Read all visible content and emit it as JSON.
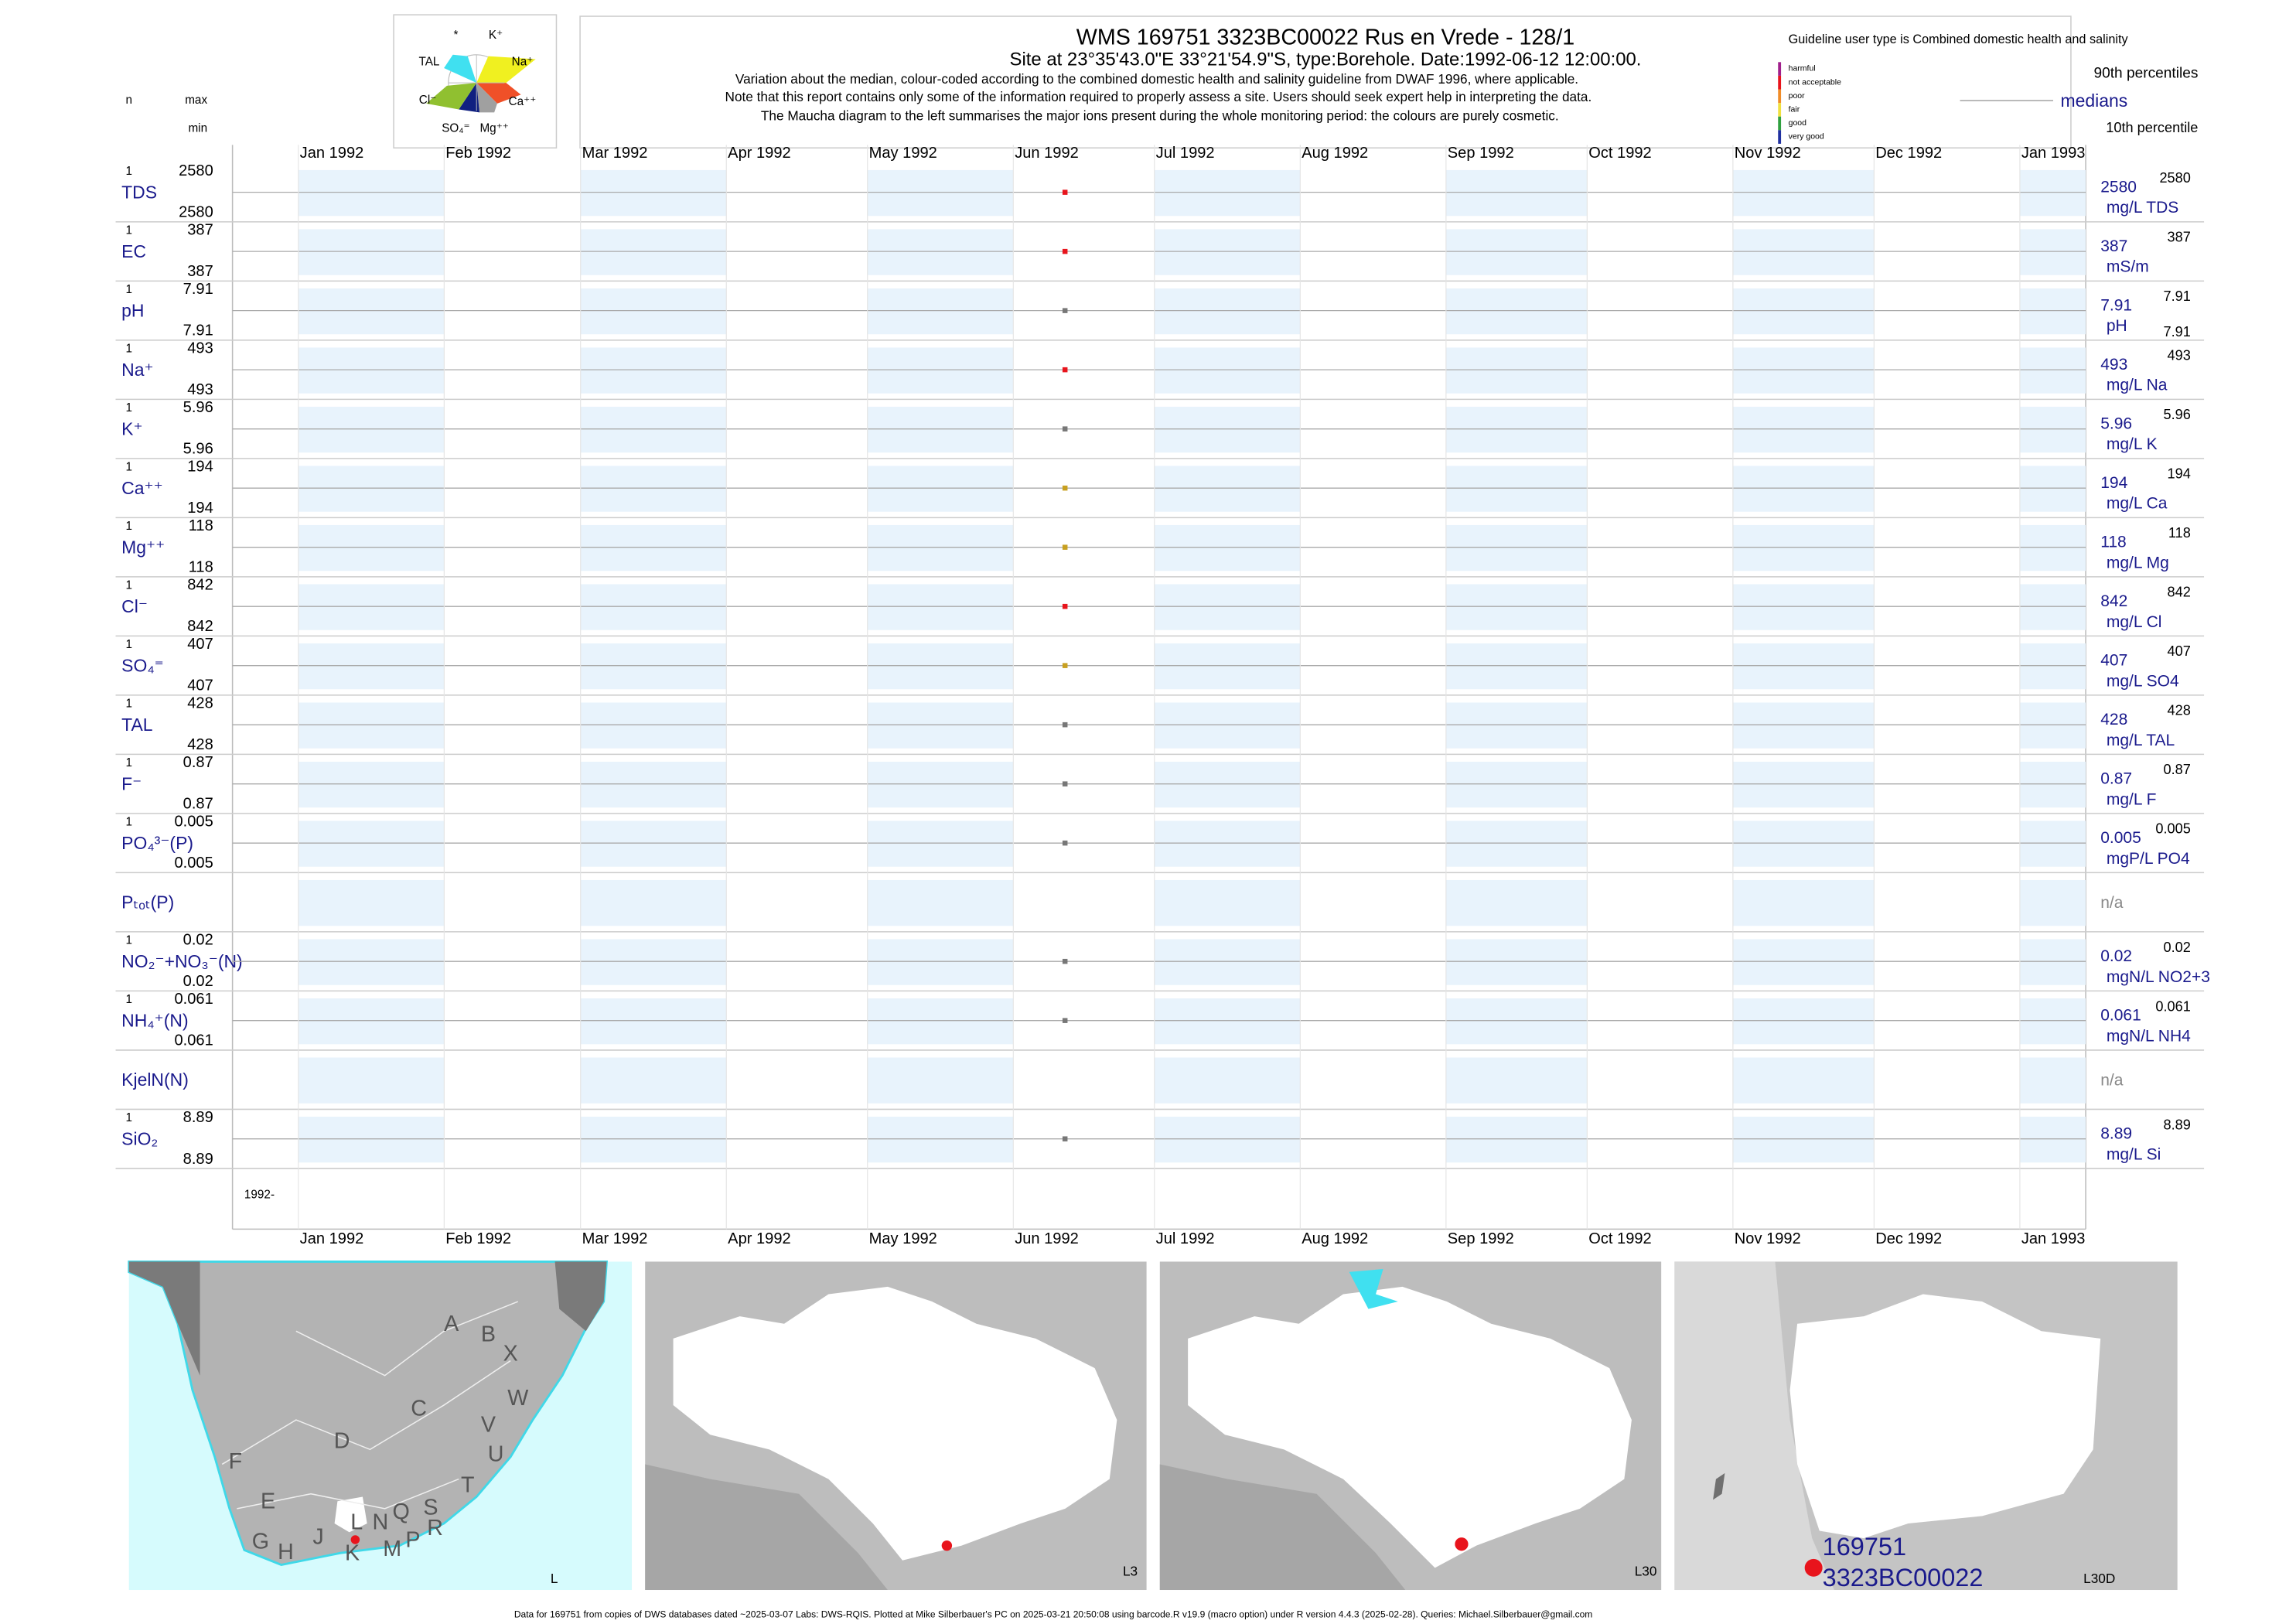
{
  "header": {
    "title": "WMS 169751 3323BC00022 Rus en Vrede - 128/1",
    "subtitle": "Site at 23°35'43.0\"E 33°21'54.9\"S, type:Borehole. Date:1992-06-12 12:00:00.",
    "notes": [
      "Variation about the median,  colour-coded according to the combined domestic health and salinity guideline from DWAF 1996, where applicable.",
      "Note that this report contains only some of the information required to properly assess a site. Users should seek expert help in interpreting the data.",
      "The Maucha diagram to the left summarises the major ions present during the whole monitoring period: the colours are purely cosmetic."
    ],
    "maucha_labels": [
      "*",
      "K⁺",
      "TAL",
      "Na⁺",
      "Cl⁻",
      "Ca⁺⁺",
      "SO₄⁼",
      "Mg⁺⁺"
    ],
    "columns": [
      "n",
      "max",
      "min"
    ]
  },
  "legend": {
    "guideline_note": "Guideline user type is Combined domestic health and salinity",
    "classes": [
      "harmful",
      "not acceptable",
      "poor",
      "fair",
      "good",
      "very good"
    ],
    "class_colors": [
      "#a0208c",
      "#e8141c",
      "#f08c28",
      "#f0e040",
      "#30a040",
      "#2030a0"
    ],
    "p90_label": "90th percentiles",
    "median_label": "medians",
    "p10_label": "10th percentile"
  },
  "axis": {
    "xlim": [
      "1991-12-18",
      "1993-01-15"
    ],
    "xticks": [
      {
        "value": "1992-01-01",
        "label": "Jan 1992"
      },
      {
        "value": "1992-02-01",
        "label": "Feb 1992"
      },
      {
        "value": "1992-03-01",
        "label": "Mar 1992"
      },
      {
        "value": "1992-04-01",
        "label": "Apr 1992"
      },
      {
        "value": "1992-05-01",
        "label": "May 1992"
      },
      {
        "value": "1992-06-01",
        "label": "Jun 1992"
      },
      {
        "value": "1992-07-01",
        "label": "Jul 1992"
      },
      {
        "value": "1992-08-01",
        "label": "Aug 1992"
      },
      {
        "value": "1992-09-01",
        "label": "Sep 1992"
      },
      {
        "value": "1992-10-01",
        "label": "Oct 1992"
      },
      {
        "value": "1992-11-01",
        "label": "Nov 1992"
      },
      {
        "value": "1992-12-01",
        "label": "Dec 1992"
      },
      {
        "value": "1993-01-01",
        "label": "Jan 1993"
      }
    ],
    "x": [
      "1992-06-12"
    ],
    "year_label": "1992-"
  },
  "rows": [
    {
      "label": "TDS",
      "n": 1,
      "max": 2580,
      "min": 2580,
      "values": [
        2580
      ],
      "median": 2580,
      "p90": 2580,
      "unit": "mg/L TDS",
      "color": "#e8141c"
    },
    {
      "label": "EC",
      "n": 1,
      "max": 387,
      "min": 387,
      "values": [
        387
      ],
      "median": 387,
      "p90": 387,
      "unit": "mS/m",
      "color": "#e8141c"
    },
    {
      "label": "pH",
      "n": 1,
      "max": 7.91,
      "min": 7.91,
      "values": [
        7.91
      ],
      "median": 7.91,
      "p90": 7.91,
      "p10": 7.91,
      "unit": "pH",
      "color": "#777777"
    },
    {
      "label": "Na⁺",
      "n": 1,
      "max": 493,
      "min": 493,
      "values": [
        493
      ],
      "median": 493,
      "p90": 493,
      "unit": "mg/L Na",
      "color": "#e8141c"
    },
    {
      "label": "K⁺",
      "n": 1,
      "max": 5.96,
      "min": 5.96,
      "values": [
        5.96
      ],
      "median": 5.96,
      "p90": 5.96,
      "unit": "mg/L K",
      "color": "#777777"
    },
    {
      "label": "Ca⁺⁺",
      "n": 1,
      "max": 194,
      "min": 194,
      "values": [
        194
      ],
      "median": 194,
      "p90": 194,
      "unit": "mg/L Ca",
      "color": "#c8a020"
    },
    {
      "label": "Mg⁺⁺",
      "n": 1,
      "max": 118,
      "min": 118,
      "values": [
        118
      ],
      "median": 118,
      "p90": 118,
      "unit": "mg/L Mg",
      "color": "#c8a020"
    },
    {
      "label": "Cl⁻",
      "n": 1,
      "max": 842,
      "min": 842,
      "values": [
        842
      ],
      "median": 842,
      "p90": 842,
      "unit": "mg/L Cl",
      "color": "#e8141c"
    },
    {
      "label": "SO₄⁼",
      "n": 1,
      "max": 407,
      "min": 407,
      "values": [
        407
      ],
      "median": 407,
      "p90": 407,
      "unit": "mg/L SO4",
      "color": "#c8a020"
    },
    {
      "label": "TAL",
      "n": 1,
      "max": 428,
      "min": 428,
      "values": [
        428
      ],
      "median": 428,
      "p90": 428,
      "unit": "mg/L TAL",
      "color": "#777777"
    },
    {
      "label": "F⁻",
      "n": 1,
      "max": 0.87,
      "min": 0.87,
      "values": [
        0.87
      ],
      "median": 0.87,
      "p90": 0.87,
      "unit": "mg/L F",
      "color": "#777777"
    },
    {
      "label": "PO₄³⁻(P)",
      "n": 1,
      "max": 0.005,
      "min": 0.005,
      "values": [
        0.005
      ],
      "median": 0.005,
      "p90": 0.005,
      "unit": "mgP/L PO4",
      "color": "#777777"
    },
    {
      "label": "Pₜₒₜ(P)",
      "status": "n/a"
    },
    {
      "label": "NO₂⁻+NO₃⁻(N)",
      "n": 1,
      "max": 0.02,
      "min": 0.02,
      "values": [
        0.02
      ],
      "median": 0.02,
      "p90": 0.02,
      "unit": "mgN/L NO2+3",
      "color": "#777777"
    },
    {
      "label": "NH₄⁺(N)",
      "n": 1,
      "max": 0.061,
      "min": 0.061,
      "values": [
        0.061
      ],
      "median": 0.061,
      "p90": 0.061,
      "unit": "mgN/L NH4",
      "color": "#777777"
    },
    {
      "label": "KjelN(N)",
      "status": "n/a"
    },
    {
      "label": "SiO₂",
      "n": 1,
      "max": 8.89,
      "min": 8.89,
      "values": [
        8.89
      ],
      "median": 8.89,
      "p90": 8.89,
      "unit": "mg/L Si",
      "color": "#777777"
    }
  ],
  "maps": {
    "panel_labels": [
      "L",
      "L3",
      "L30",
      "L30D"
    ],
    "region_letters": [
      "A",
      "B",
      "X",
      "C",
      "W",
      "D",
      "V",
      "U",
      "F",
      "T",
      "E",
      "S",
      "Q",
      "N",
      "L",
      "R",
      "J",
      "P",
      "G",
      "H",
      "K",
      "M"
    ],
    "site_id": "169751",
    "site_code": "3323BC00022"
  },
  "footer": "Data for 169751 from copies of DWS databases dated ~2025-03-07 Labs: DWS-RQIS. Plotted at Mike Silberbauer's PC on 2025-03-21 20:50:08 using barcode.R v19.9 (macro option) under R version 4.4.3 (2025-02-28). Queries: Michael.Silberbauer@gmail.com"
}
